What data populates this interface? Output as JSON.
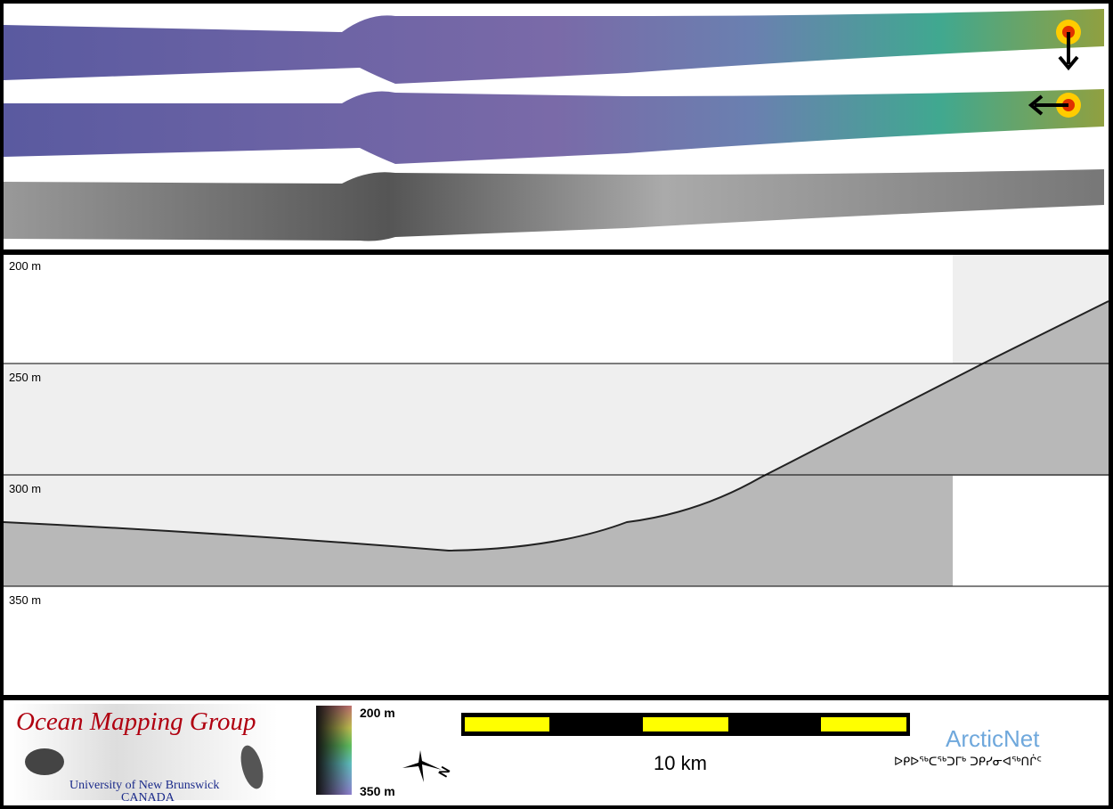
{
  "water_column": {
    "depth_labels": [
      "200 m",
      "250 m",
      "300 m",
      "350 m"
    ]
  },
  "legend": {
    "logo_title": "Ocean Mapping Group",
    "logo_university": "University of New Brunswick",
    "logo_country": "CANADA",
    "colorbar_top": "200 m",
    "colorbar_bottom": "350 m",
    "north_label": "N",
    "scale_label": "10 km",
    "partner_name": "ArcticNet",
    "partner_inuktitut": "ᐅᑭᐅᖅᑕᖅᑐᒥᒃ ᑐᑭᓯᓂᐊᖅᑎᒌᑦ"
  },
  "colors": {
    "accent_red": "#b00010",
    "scale_yellow": "#ffff00",
    "arctic_blue": "#6fa8dc",
    "uni_blue": "#1a2a8a"
  }
}
